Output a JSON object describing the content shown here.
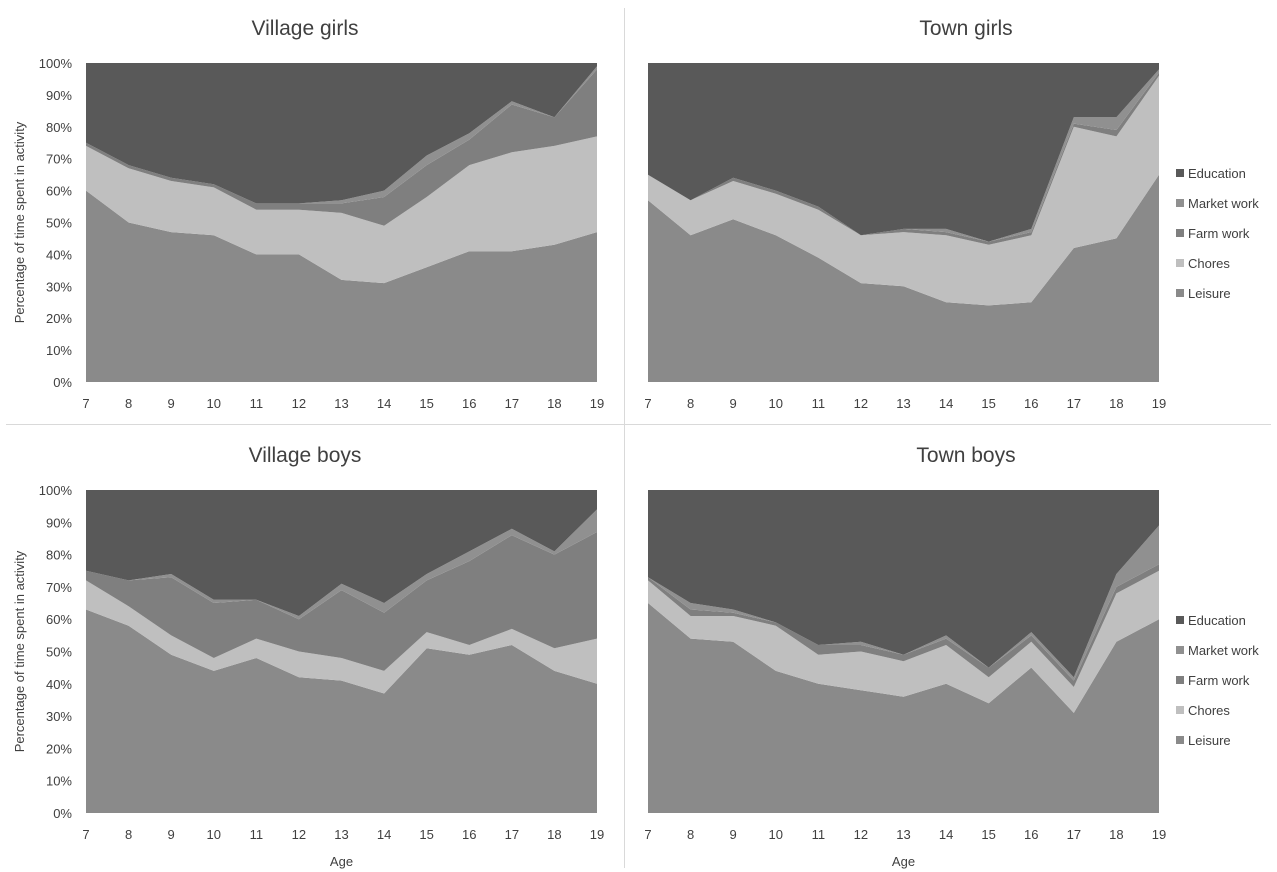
{
  "colors": {
    "Education": "#595959",
    "Market work": "#909090",
    "Farm work": "#7f7f7f",
    "Chores": "#bfbfbf",
    "Leisure": "#8a8a8a"
  },
  "chart_data": [
    {
      "type": "area",
      "stacked": true,
      "percent": true,
      "title": "Village girls",
      "xlabel": "",
      "ylabel": "Percentage of time spent in activity",
      "ylim": [
        0,
        100
      ],
      "yticks": [
        "0%",
        "10%",
        "20%",
        "30%",
        "40%",
        "50%",
        "60%",
        "70%",
        "80%",
        "90%",
        "100%"
      ],
      "categories": [
        "7",
        "8",
        "9",
        "10",
        "11",
        "12",
        "13",
        "14",
        "15",
        "16",
        "17",
        "18",
        "19"
      ],
      "legend": "none",
      "series": [
        {
          "name": "Leisure",
          "values": [
            60,
            50,
            47,
            46,
            40,
            40,
            32,
            31,
            36,
            41,
            41,
            43,
            47
          ]
        },
        {
          "name": "Chores",
          "values": [
            14,
            17,
            16,
            15,
            14,
            14,
            21,
            18,
            22,
            27,
            31,
            31,
            30
          ]
        },
        {
          "name": "Farm work",
          "values": [
            1,
            1,
            1,
            1,
            2,
            2,
            3,
            9,
            10,
            8,
            15,
            9,
            21
          ]
        },
        {
          "name": "Market work",
          "values": [
            0,
            0,
            0,
            0,
            0,
            0,
            1,
            2,
            3,
            2,
            1,
            0,
            1
          ]
        },
        {
          "name": "Education",
          "values": [
            25,
            32,
            36,
            38,
            44,
            44,
            43,
            40,
            29,
            22,
            12,
            17,
            1
          ]
        }
      ]
    },
    {
      "type": "area",
      "stacked": true,
      "percent": true,
      "title": "Town girls",
      "xlabel": "",
      "ylabel": "",
      "ylim": [
        0,
        100
      ],
      "yticks": [],
      "categories": [
        "7",
        "8",
        "9",
        "10",
        "11",
        "12",
        "13",
        "14",
        "15",
        "16",
        "17",
        "18",
        "19"
      ],
      "legend": "right",
      "series": [
        {
          "name": "Leisure",
          "values": [
            57,
            46,
            51,
            46,
            39,
            31,
            30,
            25,
            24,
            25,
            42,
            45,
            65
          ]
        },
        {
          "name": "Chores",
          "values": [
            8,
            11,
            12,
            13,
            15,
            15,
            17,
            21,
            19,
            21,
            38,
            32,
            31
          ]
        },
        {
          "name": "Farm work",
          "values": [
            0,
            0,
            1,
            1,
            1,
            0,
            1,
            1,
            1,
            1,
            1,
            2,
            1
          ]
        },
        {
          "name": "Market work",
          "values": [
            0,
            0,
            0,
            0,
            0,
            0,
            0,
            1,
            0,
            1,
            2,
            4,
            1
          ]
        },
        {
          "name": "Education",
          "values": [
            35,
            43,
            36,
            40,
            45,
            54,
            52,
            52,
            56,
            52,
            17,
            17,
            2
          ]
        }
      ]
    },
    {
      "type": "area",
      "stacked": true,
      "percent": true,
      "title": "Village boys",
      "xlabel": "Age",
      "ylabel": "Percentage of time spent in activity",
      "ylim": [
        0,
        100
      ],
      "yticks": [
        "0%",
        "10%",
        "20%",
        "30%",
        "40%",
        "50%",
        "60%",
        "70%",
        "80%",
        "90%",
        "100%"
      ],
      "categories": [
        "7",
        "8",
        "9",
        "10",
        "11",
        "12",
        "13",
        "14",
        "15",
        "16",
        "17",
        "18",
        "19"
      ],
      "legend": "none",
      "series": [
        {
          "name": "Leisure",
          "values": [
            63,
            58,
            49,
            44,
            48,
            42,
            41,
            37,
            51,
            49,
            52,
            44,
            40
          ]
        },
        {
          "name": "Chores",
          "values": [
            9,
            6,
            6,
            4,
            6,
            8,
            7,
            7,
            5,
            3,
            5,
            7,
            14
          ]
        },
        {
          "name": "Farm work",
          "values": [
            3,
            8,
            18,
            17,
            12,
            10,
            21,
            18,
            16,
            26,
            29,
            29,
            33
          ]
        },
        {
          "name": "Market work",
          "values": [
            0,
            0,
            1,
            1,
            0,
            1,
            2,
            3,
            2,
            3,
            2,
            1,
            7
          ]
        },
        {
          "name": "Education",
          "values": [
            25,
            28,
            26,
            34,
            34,
            39,
            29,
            35,
            26,
            19,
            12,
            19,
            6
          ]
        }
      ]
    },
    {
      "type": "area",
      "stacked": true,
      "percent": true,
      "title": "Town boys",
      "xlabel": "Age",
      "ylabel": "",
      "ylim": [
        0,
        100
      ],
      "yticks": [],
      "categories": [
        "7",
        "8",
        "9",
        "10",
        "11",
        "12",
        "13",
        "14",
        "15",
        "16",
        "17",
        "18",
        "19"
      ],
      "legend": "right",
      "series": [
        {
          "name": "Leisure",
          "values": [
            65,
            54,
            53,
            44,
            40,
            38,
            36,
            40,
            34,
            45,
            31,
            53,
            60
          ]
        },
        {
          "name": "Chores",
          "values": [
            7,
            7,
            8,
            14,
            9,
            12,
            11,
            12,
            8,
            8,
            8,
            15,
            15
          ]
        },
        {
          "name": "Farm work",
          "values": [
            1,
            2,
            1,
            1,
            3,
            2,
            2,
            2,
            3,
            2,
            2,
            2,
            2
          ]
        },
        {
          "name": "Market work",
          "values": [
            0,
            2,
            1,
            0,
            0,
            1,
            0,
            1,
            0,
            1,
            1,
            4,
            12
          ]
        },
        {
          "name": "Education",
          "values": [
            27,
            35,
            37,
            41,
            48,
            47,
            51,
            45,
            55,
            44,
            58,
            26,
            11
          ]
        }
      ]
    }
  ]
}
